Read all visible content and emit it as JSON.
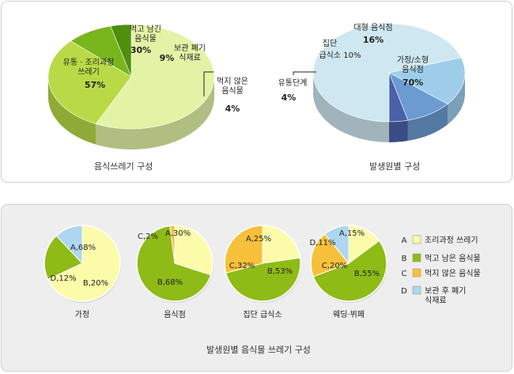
{
  "chart_data": [
    {
      "type": "pie",
      "title": "음식쓰레기 구성",
      "slices": [
        {
          "label": "유통 · 조리과정 쓰레기",
          "value": 57,
          "pct": "57%",
          "color": "#e3f3a6"
        },
        {
          "label": "먹고 남긴 음식물",
          "value": 30,
          "pct": "30%",
          "color": "#b9da46"
        },
        {
          "label": "보관 폐기 식재료",
          "value": 9,
          "pct": "9%",
          "color": "#79b51c"
        },
        {
          "label": "먹지 않은 음식물",
          "value": 4,
          "pct": "4%",
          "color": "#4f8f0e"
        }
      ]
    },
    {
      "type": "pie",
      "title": "발생원별 구성",
      "slices": [
        {
          "label": "가정/소형 음식점",
          "value": 70,
          "pct": "70%",
          "color": "#cfe7f1"
        },
        {
          "label": "대형 음식점",
          "value": 16,
          "pct": "16%",
          "color": "#9ecdea"
        },
        {
          "label": "집단 급식소",
          "value": 10,
          "pct": "10%",
          "color": "#6c9bd0"
        },
        {
          "label": "유통단계",
          "value": 4,
          "pct": "4%",
          "color": "#4a61a8"
        }
      ]
    },
    {
      "type": "pie",
      "title": "발생원별 음식물 쓰레기 구성",
      "legend": [
        {
          "key": "A",
          "label": "조리과정 쓰레기",
          "color": "#fbfba9"
        },
        {
          "key": "B",
          "label": "먹고 남은 음식물",
          "color": "#8fbb17"
        },
        {
          "key": "C",
          "label": "먹지 않은 음식물",
          "color": "#f7c03b"
        },
        {
          "key": "D",
          "label": "보관 후 폐기 식재료",
          "color": "#aed6f0"
        }
      ],
      "pies": [
        {
          "name": "가정",
          "slices": [
            {
              "key": "A",
              "value": 68,
              "text": "A,68%"
            },
            {
              "key": "B",
              "value": 20,
              "text": "B,20%"
            },
            {
              "key": "C",
              "value": 0,
              "text": ""
            },
            {
              "key": "D",
              "value": 12,
              "text": "D,12%"
            }
          ]
        },
        {
          "name": "음식점",
          "slices": [
            {
              "key": "A",
              "value": 30,
              "text": "A,30%"
            },
            {
              "key": "B",
              "value": 68,
              "text": "B,68%"
            },
            {
              "key": "C",
              "value": 2,
              "text": "C,2%"
            },
            {
              "key": "D",
              "value": 0,
              "text": ""
            }
          ]
        },
        {
          "name": "집단 급식소",
          "slices": [
            {
              "key": "A",
              "value": 25,
              "text": "A,25%"
            },
            {
              "key": "B",
              "value": 53,
              "text": "B,53%"
            },
            {
              "key": "C",
              "value": 32,
              "text": "C,32%"
            },
            {
              "key": "D",
              "value": 0,
              "text": ""
            }
          ]
        },
        {
          "name": "웨딩·뷔페",
          "slices": [
            {
              "key": "A",
              "value": 15,
              "text": "A,15%"
            },
            {
              "key": "B",
              "value": 55,
              "text": "B,55%"
            },
            {
              "key": "C",
              "value": 20,
              "text": "C,20%"
            },
            {
              "key": "D",
              "value": 11,
              "text": "D,11%"
            }
          ]
        }
      ]
    }
  ]
}
